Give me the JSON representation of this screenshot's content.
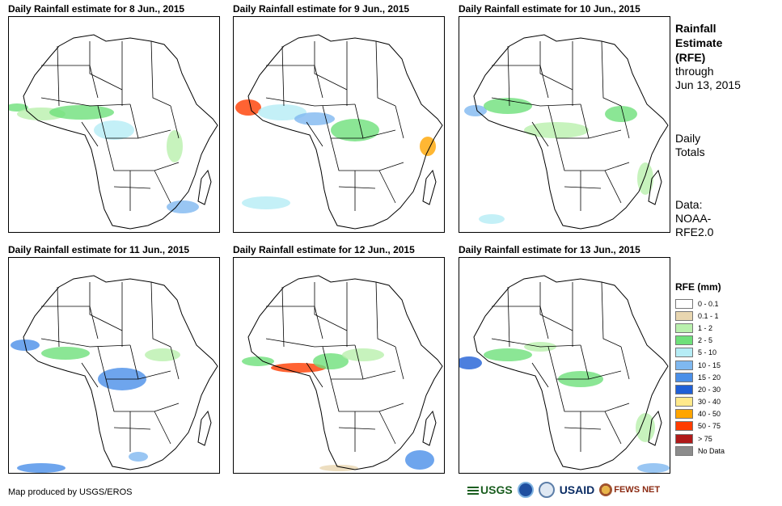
{
  "panels": [
    {
      "title": "Daily Rainfall estimate for 8 Jun., 2015"
    },
    {
      "title": "Daily Rainfall estimate for 9 Jun., 2015"
    },
    {
      "title": "Daily Rainfall estimate for 10 Jun., 2015"
    },
    {
      "title": "Daily Rainfall estimate for 11 Jun., 2015"
    },
    {
      "title": "Daily Rainfall estimate for 12 Jun., 2015"
    },
    {
      "title": "Daily Rainfall estimate for 13 Jun., 2015"
    }
  ],
  "sidebar": {
    "title_line1": "Rainfall",
    "title_line2": "Estimate",
    "title_line3": "(RFE)",
    "through_label": "through",
    "through_date": "Jun 13, 2015",
    "totals_line1": "Daily",
    "totals_line2": "Totals",
    "data_line1": "Data:",
    "data_line2": "NOAA-",
    "data_line3": "RFE2.0"
  },
  "legend": {
    "title": "RFE (mm)",
    "items": [
      {
        "label": "0 - 0.1",
        "color": "#ffffff"
      },
      {
        "label": "0.1 - 1",
        "color": "#e8d6b0"
      },
      {
        "label": "1 - 2",
        "color": "#b9f0ad"
      },
      {
        "label": "2 - 5",
        "color": "#6ee07a"
      },
      {
        "label": "5 - 10",
        "color": "#b5ecf5"
      },
      {
        "label": "10 - 15",
        "color": "#7fb8f0"
      },
      {
        "label": "15 - 20",
        "color": "#4a8fe8"
      },
      {
        "label": "20 - 30",
        "color": "#1f5fd6"
      },
      {
        "label": "30 - 40",
        "color": "#ffe98a"
      },
      {
        "label": "40 - 50",
        "color": "#ffa500"
      },
      {
        "label": "50 - 75",
        "color": "#ff3c00"
      },
      {
        "label": "> 75",
        "color": "#b01a1a"
      },
      {
        "label": "No Data",
        "color": "#8c8c8c"
      }
    ]
  },
  "footer": {
    "credit": "Map produced by USGS/EROS",
    "logo_usgs": "USGS",
    "logo_usaid": "USAID",
    "logo_fews": "FEWS NET"
  }
}
